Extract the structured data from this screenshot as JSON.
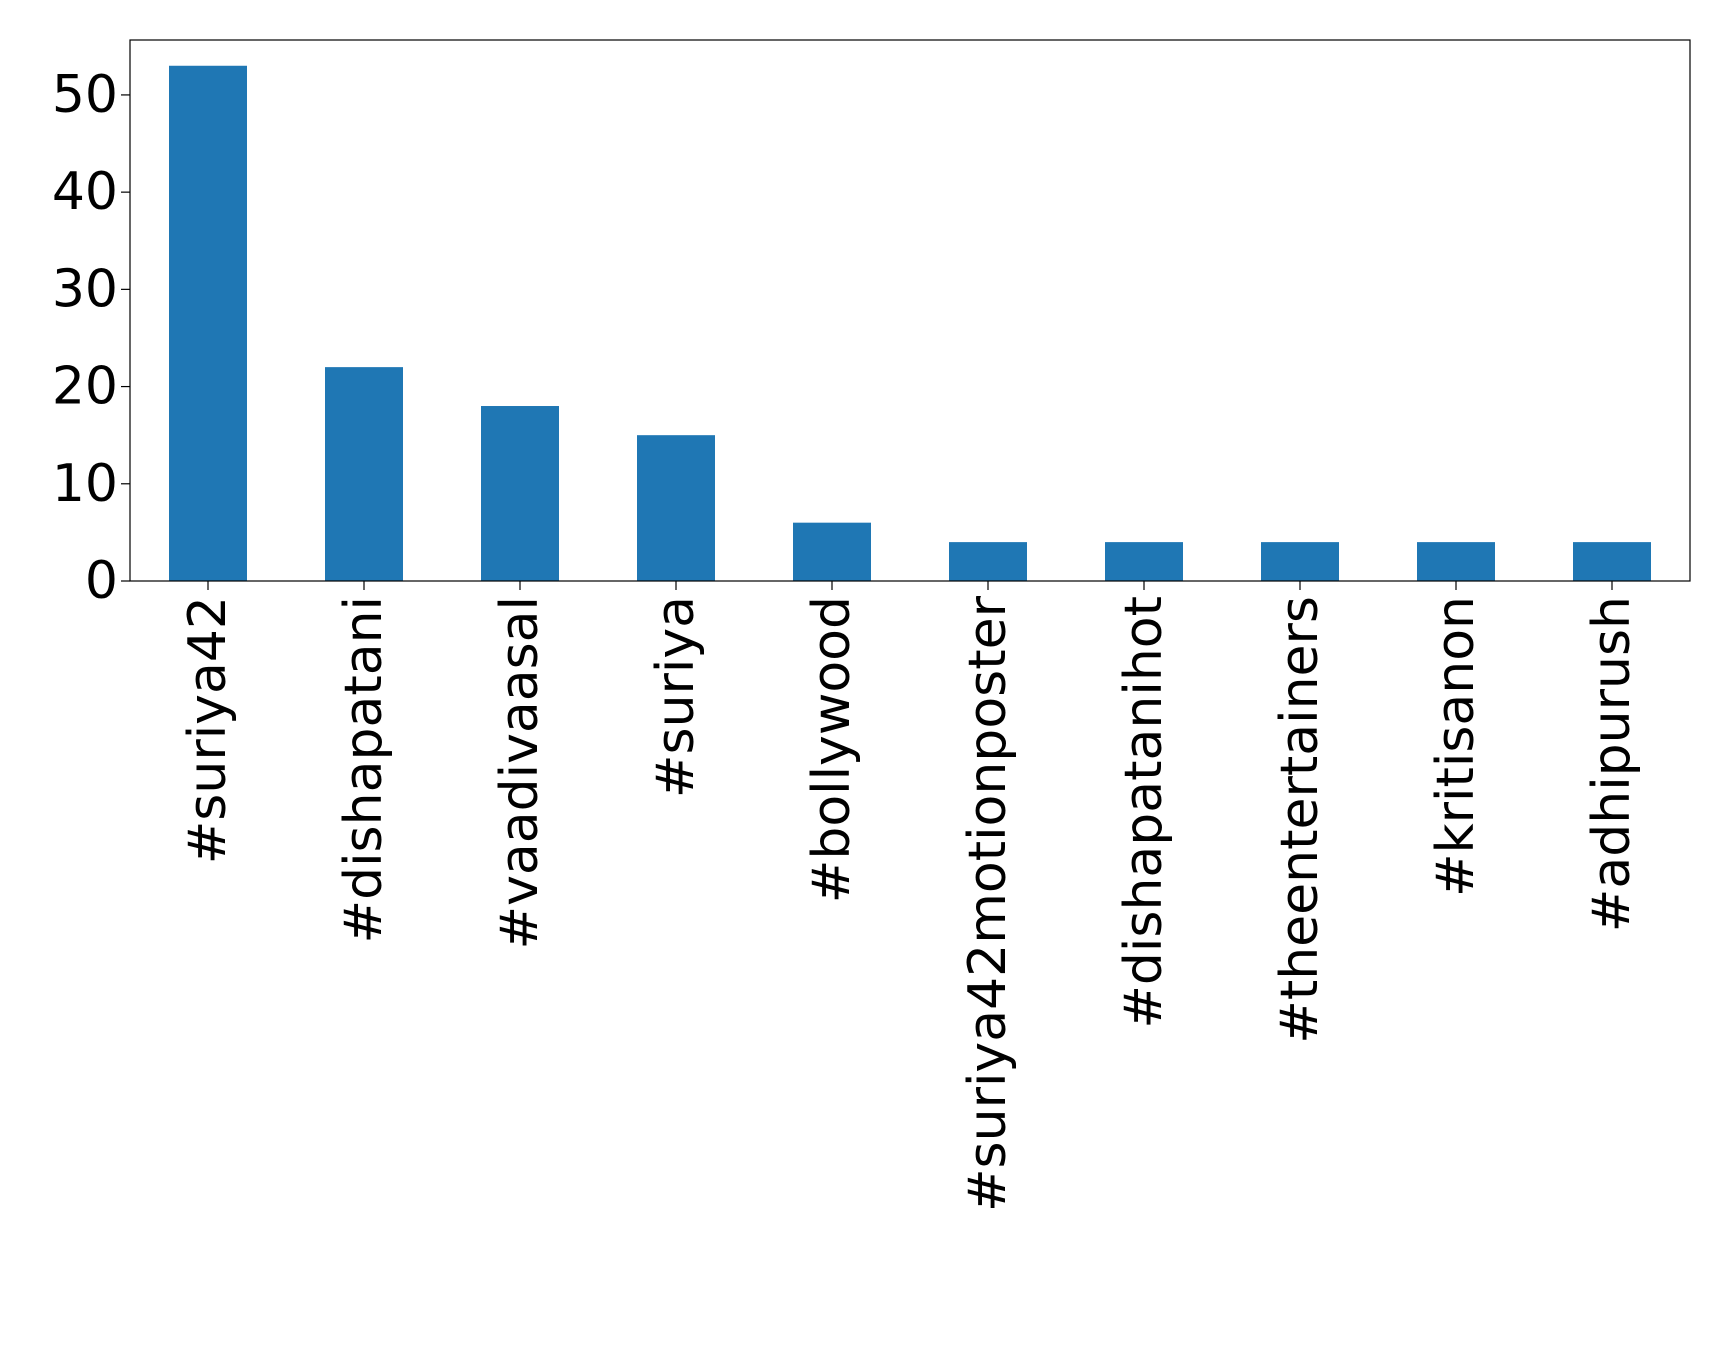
{
  "chart_data": {
    "type": "bar",
    "title": "",
    "xlabel": "",
    "ylabel": "",
    "categories": [
      "#suriya42",
      "#dishapatani",
      "#vaadivaasal",
      "#suriya",
      "#bollywood",
      "#suriya42motionposter",
      "#dishapatanihot",
      "#theentertainers",
      "#kritisanon",
      "#adhipurush"
    ],
    "values": [
      53,
      22,
      18,
      15,
      6,
      4,
      4,
      4,
      4,
      4
    ],
    "ylim": [
      0,
      55.65
    ],
    "yticks": [
      0,
      10,
      20,
      30,
      40,
      50
    ],
    "grid": false,
    "legend": "none",
    "bar_color": "#1f77b4",
    "axis_color": "#000000"
  }
}
